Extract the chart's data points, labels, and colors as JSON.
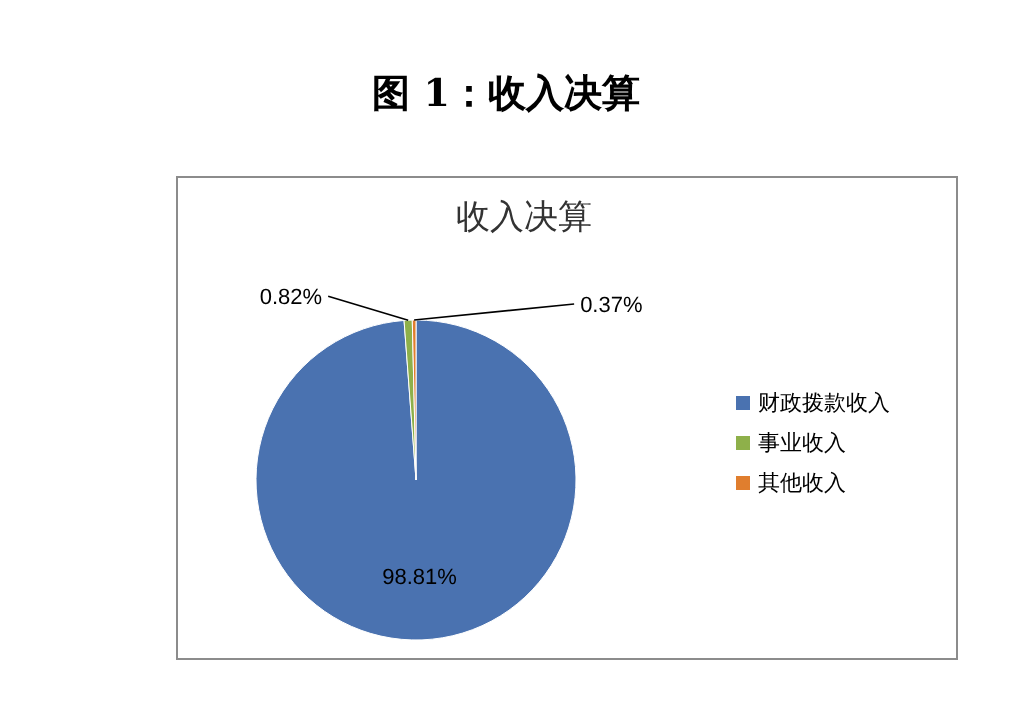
{
  "chart_data": {
    "type": "pie",
    "title": "图 1：收入决算",
    "subtitle": "收入决算",
    "categories": [
      "财政拨款收入",
      "事业收入",
      "其他收入"
    ],
    "values": [
      98.81,
      0.82,
      0.37
    ],
    "colors": [
      "#4a72b0",
      "#8eb04a",
      "#e07e2e"
    ],
    "value_labels": [
      "98.81%",
      "0.82%",
      "0.37%"
    ],
    "legend": "right"
  }
}
